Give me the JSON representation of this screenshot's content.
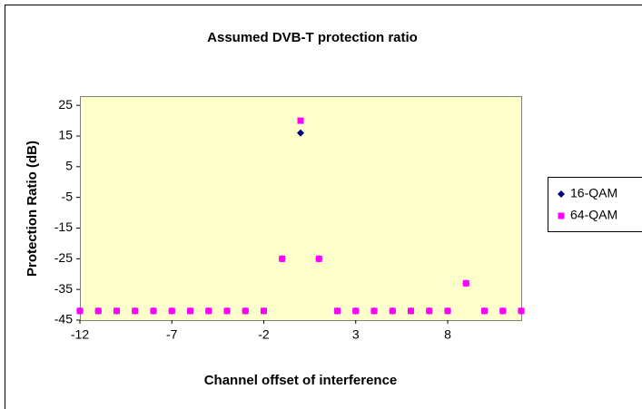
{
  "chart_data": {
    "type": "scatter",
    "title": "Assumed DVB-T protection ratio",
    "xlabel": "Channel offset of interference",
    "ylabel": "Protection Ratio (dB)",
    "xlim": [
      -12,
      12
    ],
    "xticks": [
      -12,
      -7,
      -2,
      3,
      8
    ],
    "ylim": [
      -45,
      28
    ],
    "yticks": [
      -45,
      -35,
      -25,
      -15,
      -5,
      5,
      15,
      25
    ],
    "grid": false,
    "legend": "right",
    "x": [
      -12,
      -11,
      -10,
      -9,
      -8,
      -7,
      -6,
      -5,
      -4,
      -3,
      -2,
      -1,
      0,
      1,
      2,
      3,
      4,
      5,
      6,
      7,
      8,
      9,
      10,
      11,
      12
    ],
    "series": [
      {
        "name": "16-QAM",
        "color": "#000080",
        "values": [
          -42,
          -42,
          -42,
          -42,
          -42,
          -42,
          -42,
          -42,
          -42,
          -42,
          -42,
          -25,
          16,
          -25,
          -42,
          -42,
          -42,
          -42,
          -42,
          -42,
          -42,
          -33,
          -42,
          -42,
          -42
        ]
      },
      {
        "name": "64-QAM",
        "color": "#ff00ff",
        "values": [
          -42,
          -42,
          -42,
          -42,
          -42,
          -42,
          -42,
          -42,
          -42,
          -42,
          -42,
          -25,
          20,
          -25,
          -42,
          -42,
          -42,
          -42,
          -42,
          -42,
          -42,
          -33,
          -42,
          -42,
          -42
        ]
      }
    ]
  }
}
